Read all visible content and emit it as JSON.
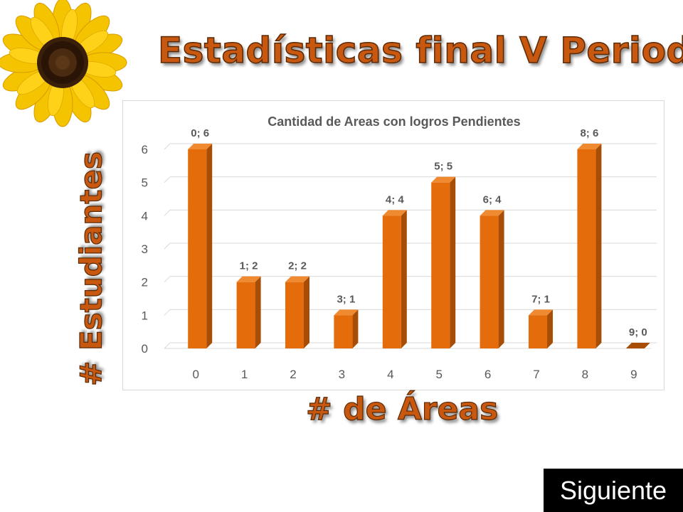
{
  "slide": {
    "title": "Estadísticas final V Periodo",
    "y_title": "# Estudiantes",
    "x_title": "# de Áreas",
    "next_label": "Siguiente"
  },
  "colors": {
    "bar": "#e46c0a",
    "bar_side": "#a84d05",
    "bar_top": "#f08a30",
    "title": "#c8580f",
    "grid": "#d9d9d9",
    "text": "#595959"
  },
  "chart_data": {
    "type": "bar",
    "title": "Cantidad de Areas con logros Pendientes",
    "categories": [
      "0",
      "1",
      "2",
      "3",
      "4",
      "5",
      "6",
      "7",
      "8",
      "9"
    ],
    "values": [
      6,
      2,
      2,
      1,
      4,
      5,
      4,
      1,
      6,
      0
    ],
    "data_labels": [
      "0; 6",
      "1; 2",
      "2; 2",
      "3; 1",
      "4; 4",
      "5; 5",
      "6; 4",
      "7; 1",
      "8; 6",
      "9; 0"
    ],
    "y_ticks": [
      "0",
      "1",
      "2",
      "3",
      "4",
      "5",
      "6"
    ],
    "ylim": [
      0,
      6
    ],
    "grid": true,
    "style": "3d-column"
  }
}
